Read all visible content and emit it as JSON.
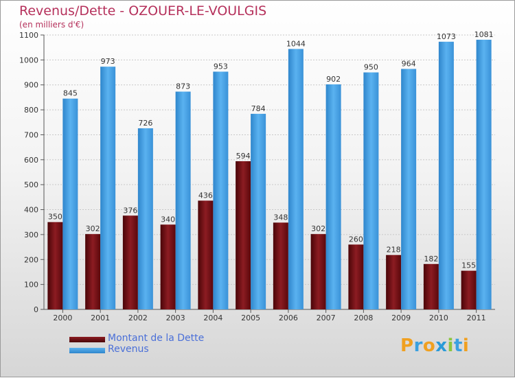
{
  "header": {
    "title": "Revenus/Dette - OZOUER-LE-VOULGIS",
    "subtitle": "(en milliers d'€)"
  },
  "legend": {
    "items": [
      {
        "label": "Montant de la Dette",
        "color": "#7a0f14"
      },
      {
        "label": "Revenus",
        "color": "#4aa3e6"
      }
    ]
  },
  "brand": {
    "logo": "Proxiti",
    "letter_colors": [
      "#f0a020",
      "#3aa0e0",
      "#f0a020",
      "#2a9ad8",
      "#8cc63f",
      "#3aa0e0",
      "#f0a020"
    ]
  },
  "chart_data": {
    "type": "bar",
    "title": "Revenus/Dette - OZOUER-LE-VOULGIS",
    "ylabel": "(en milliers d'€)",
    "xlabel": "",
    "ylim": [
      0,
      1100
    ],
    "yticks": [
      0,
      100,
      200,
      300,
      400,
      500,
      600,
      700,
      800,
      900,
      1000,
      1100
    ],
    "grid": true,
    "legend_position": "bottom-left",
    "categories": [
      "2000",
      "2001",
      "2002",
      "2003",
      "2004",
      "2005",
      "2006",
      "2007",
      "2008",
      "2009",
      "2010",
      "2011"
    ],
    "series": [
      {
        "name": "Montant de la Dette",
        "color": "#7a0f14",
        "values": [
          350,
          302,
          376,
          340,
          436,
          594,
          348,
          302,
          260,
          218,
          182,
          155
        ]
      },
      {
        "name": "Revenus",
        "color": "#4aa3e6",
        "values": [
          845,
          973,
          726,
          873,
          953,
          784,
          1044,
          902,
          950,
          964,
          1073,
          1081
        ]
      }
    ]
  }
}
